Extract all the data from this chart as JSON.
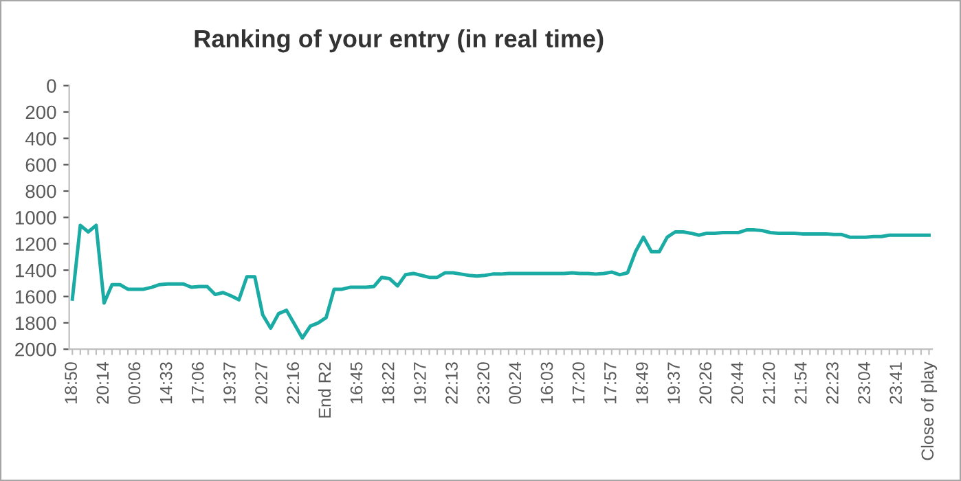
{
  "chart_data": {
    "type": "line",
    "title": "Ranking of your entry (in real time)",
    "categories": [
      "18:50",
      null,
      null,
      null,
      "20:14",
      null,
      null,
      null,
      "00:06",
      null,
      null,
      null,
      "14:33",
      null,
      null,
      null,
      "17:06",
      null,
      null,
      null,
      "19:37",
      null,
      null,
      null,
      "20:27",
      null,
      null,
      null,
      "22:16",
      null,
      null,
      null,
      "End R2",
      null,
      null,
      null,
      "16:45",
      null,
      null,
      null,
      "18:22",
      null,
      null,
      null,
      "19:27",
      null,
      null,
      null,
      "22:13",
      null,
      null,
      null,
      "23:20",
      null,
      null,
      null,
      "00:24",
      null,
      null,
      null,
      "16:03",
      null,
      null,
      null,
      "17:20",
      null,
      null,
      null,
      "17:57",
      null,
      null,
      null,
      "18:49",
      null,
      null,
      null,
      "19:37",
      null,
      null,
      null,
      "20:26",
      null,
      null,
      null,
      "20:44",
      null,
      null,
      null,
      "21:20",
      null,
      null,
      null,
      "21:54",
      null,
      null,
      null,
      "22:23",
      null,
      null,
      null,
      "23:04",
      null,
      null,
      null,
      "23:41",
      null,
      null,
      null,
      "Close of play"
    ],
    "series": [
      {
        "color": "#1aaba5",
        "values": [
          1620,
          1060,
          1110,
          1060,
          1650,
          1510,
          1510,
          1545,
          1545,
          1545,
          1530,
          1510,
          1505,
          1505,
          1505,
          1530,
          1525,
          1525,
          1585,
          1570,
          1595,
          1625,
          1450,
          1450,
          1740,
          1840,
          1730,
          1705,
          1810,
          1915,
          1825,
          1800,
          1760,
          1545,
          1545,
          1530,
          1530,
          1530,
          1525,
          1455,
          1465,
          1520,
          1435,
          1425,
          1440,
          1455,
          1455,
          1420,
          1420,
          1430,
          1440,
          1445,
          1440,
          1430,
          1430,
          1425,
          1425,
          1425,
          1425,
          1425,
          1425,
          1425,
          1425,
          1420,
          1425,
          1425,
          1430,
          1425,
          1415,
          1435,
          1420,
          1260,
          1150,
          1260,
          1260,
          1150,
          1110,
          1110,
          1120,
          1135,
          1120,
          1120,
          1115,
          1115,
          1115,
          1095,
          1095,
          1100,
          1115,
          1120,
          1120,
          1120,
          1125,
          1125,
          1125,
          1125,
          1130,
          1130,
          1150,
          1150,
          1150,
          1145,
          1145,
          1135,
          1135,
          1135,
          1135,
          1135,
          1135
        ]
      }
    ],
    "ylim": [
      2000,
      0
    ],
    "yticks": [
      0,
      200,
      400,
      600,
      800,
      1000,
      1200,
      1400,
      1600,
      1800,
      2000
    ],
    "grid": false,
    "marker": "none",
    "line_style": "solid"
  }
}
